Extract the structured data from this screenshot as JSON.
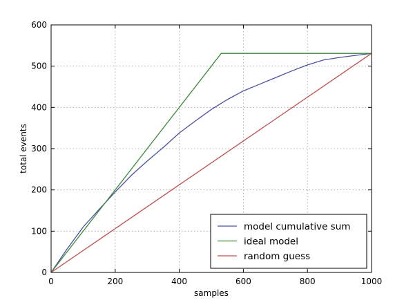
{
  "chart_data": {
    "type": "line",
    "xlabel": "samples",
    "ylabel": "total events",
    "xlim": [
      0,
      1000
    ],
    "ylim": [
      0,
      600
    ],
    "xticks": [
      0,
      200,
      400,
      600,
      800,
      1000
    ],
    "yticks": [
      0,
      100,
      200,
      300,
      400,
      500,
      600
    ],
    "grid": true,
    "legend_position": "bottom-right",
    "series": [
      {
        "name": "model cumulative sum",
        "color": "#4a4fa0",
        "x": [
          0,
          50,
          100,
          150,
          200,
          250,
          300,
          350,
          400,
          450,
          500,
          550,
          600,
          650,
          700,
          750,
          800,
          850,
          900,
          950,
          1000
        ],
        "y": [
          0,
          57,
          110,
          153,
          195,
          235,
          270,
          303,
          338,
          367,
          395,
          419,
          440,
          456,
          472,
          488,
          503,
          515,
          521,
          526,
          531
        ]
      },
      {
        "name": "ideal model",
        "color": "#3a8a3a",
        "x": [
          0,
          531,
          1000
        ],
        "y": [
          0,
          531,
          531
        ]
      },
      {
        "name": "random guess",
        "color": "#c0504d",
        "x": [
          0,
          1000
        ],
        "y": [
          0,
          531
        ]
      }
    ]
  }
}
